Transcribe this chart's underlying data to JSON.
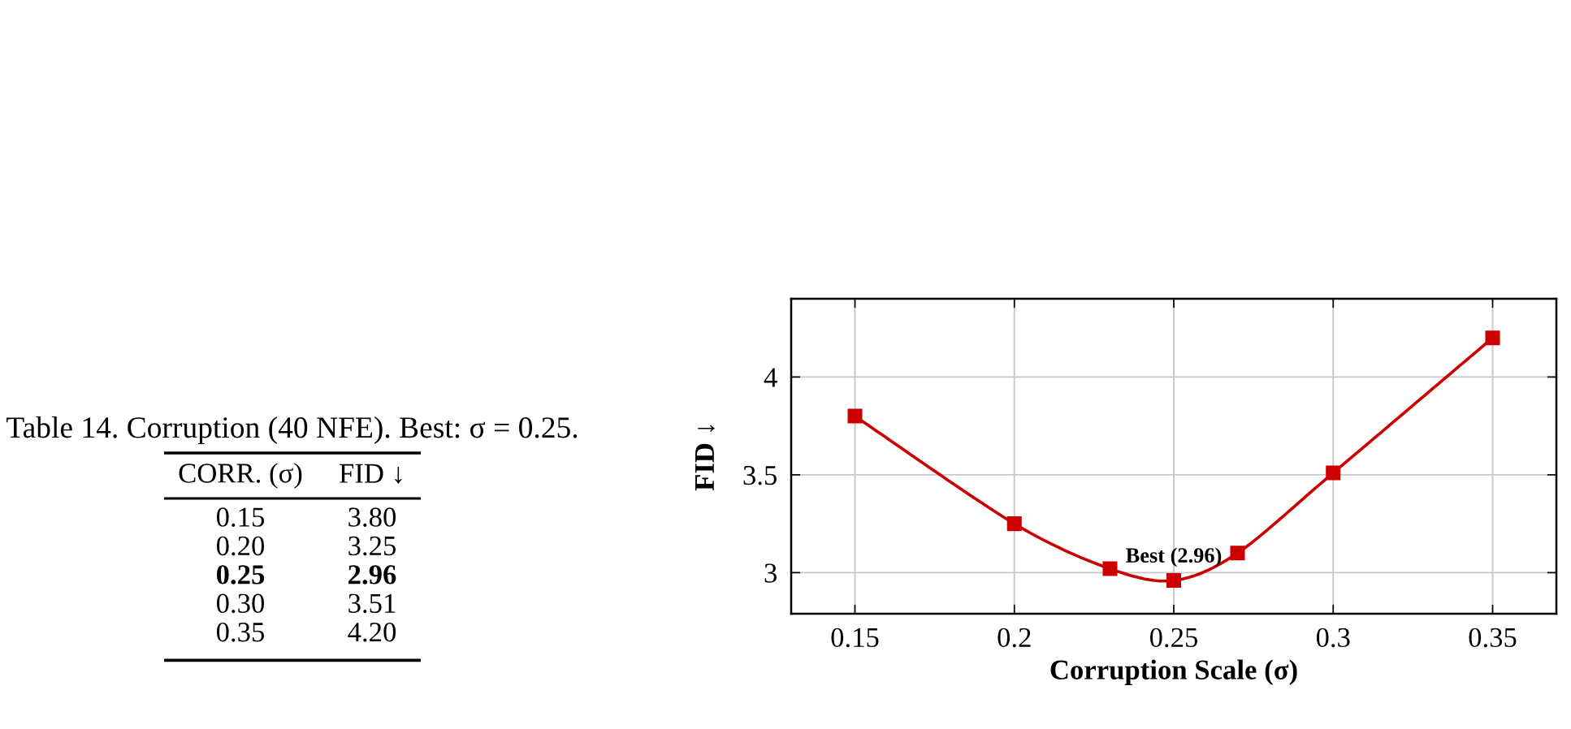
{
  "chart_data": [
    {
      "type": "heatmap",
      "title": "Table 14. Corruption (40 NFE). Best: σ = 0.25.",
      "ylabel": "CORR. (σ)",
      "categories": [
        "FID ↓"
      ],
      "y_categories": [
        "0.15",
        "0.20",
        "0.25",
        "0.30",
        "0.35"
      ],
      "cells": [
        [
          3.8
        ],
        [
          3.25
        ],
        [
          2.96
        ],
        [
          3.51
        ],
        [
          4.2
        ]
      ],
      "cell_labels": [
        [
          "3.80"
        ],
        [
          "3.25"
        ],
        [
          "2.96"
        ],
        [
          "3.51"
        ],
        [
          "4.20"
        ]
      ]
    },
    {
      "type": "line",
      "xlabel": "Corruption Scale (σ)",
      "ylabel": "FID ↓",
      "x": [
        0.15,
        0.2,
        0.23,
        0.25,
        0.27,
        0.3,
        0.35
      ],
      "values": [
        3.8,
        3.25,
        3.02,
        2.96,
        3.1,
        3.51,
        4.2
      ],
      "color": "#cc0000",
      "marker": "square",
      "line_style": "solid",
      "xlim": [
        0.13,
        0.37
      ],
      "ylim": [
        2.79,
        4.4
      ],
      "xticks": [
        0.15,
        0.2,
        0.25,
        0.3,
        0.35
      ],
      "yticks": [
        3,
        3.5,
        4
      ],
      "grid": true,
      "annotations": [
        {
          "text": "Best (2.96)",
          "x": 0.25,
          "y": 2.96
        }
      ]
    }
  ]
}
